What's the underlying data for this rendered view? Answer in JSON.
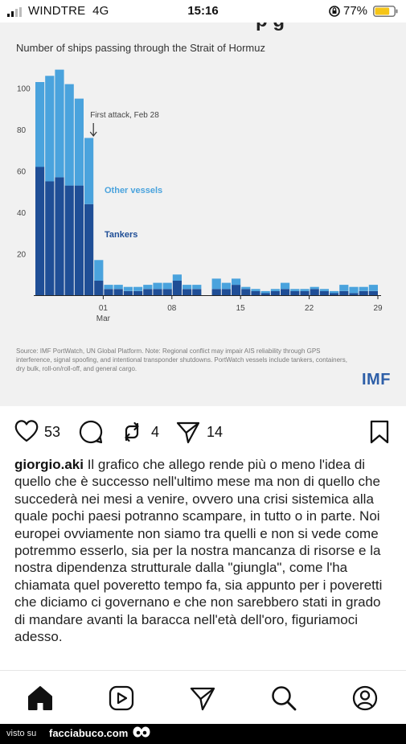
{
  "status_bar": {
    "carrier": "WINDTRE",
    "network": "4G",
    "time": "15:16",
    "battery_pct": "77%",
    "battery_level": 0.77,
    "battery_color": "#f5c518"
  },
  "post_image": {
    "cut_off_title": "p g",
    "chart_title": "Number of ships passing through the Strait of Hormuz",
    "source_note": "Source: IMF PortWatch, UN Global Platform. Note: Regional conflict may impair AIS reliability through GPS interference, signal spoofing, and intentional transponder shutdowns. PortWatch vessels include tankers, containers, dry bulk, roll-on/roll-off, and general cargo.",
    "logo": "IMF"
  },
  "chart_data": {
    "type": "bar",
    "stacked": true,
    "title": "Number of ships passing through the Strait of Hormuz",
    "annotation": "First attack, Feb 28",
    "annotation_index": 6,
    "series": [
      {
        "name": "Tankers",
        "color": "#1f4e96",
        "values": [
          62,
          55,
          57,
          53,
          53,
          44,
          7,
          3,
          3,
          2,
          2,
          3,
          3,
          3,
          7,
          3,
          3,
          3,
          3,
          5,
          3,
          2,
          1,
          2,
          3,
          2,
          2,
          3,
          2,
          1,
          2,
          1,
          2,
          2
        ]
      },
      {
        "name": "Other vessels",
        "color": "#4aa3dd",
        "values": [
          41,
          51,
          52,
          49,
          42,
          32,
          10,
          2,
          2,
          2,
          2,
          2,
          3,
          3,
          3,
          2,
          2,
          5,
          3,
          3,
          1,
          1,
          1,
          1,
          3,
          1,
          1,
          1,
          1,
          1,
          3,
          3,
          2,
          3
        ]
      }
    ],
    "gap_indices": [
      17
    ],
    "ylim": [
      0,
      110
    ],
    "yticks": [
      "20",
      "40",
      "60",
      "80",
      "100"
    ],
    "ytick_values": [
      20,
      40,
      60,
      80,
      100
    ],
    "xticks": [
      {
        "label": "01",
        "index": 7
      },
      {
        "label": "08",
        "index": 14
      },
      {
        "label": "15",
        "index": 21
      },
      {
        "label": "22",
        "index": 28
      },
      {
        "label": "29",
        "index": 35
      }
    ],
    "x_month_label": "Mar",
    "grid": false,
    "legend": "inline labels"
  },
  "actions": {
    "likes": "53",
    "reposts": "4",
    "shares": "14"
  },
  "caption": {
    "username": "giorgio.aki",
    "text": "Il grafico che allego rende più o meno l'idea di quello che è successo nell'ultimo mese ma non di quello che succederà nei mesi a venire, ovvero una crisi sistemica alla quale pochi paesi potranno scampare, in tutto o in parte. Noi europei ovviamente non siamo tra quelli e non si vede come potremmo esserlo, sia per la nostra mancanza di risorse e la nostra dipendenza strutturale dalla \"giungla\", come l'ha chiamata quel poveretto tempo fa, sia appunto per i poveretti che diciamo ci governano e che non sarebbero stati in grado di mandare avanti la baracca nell'età dell'oro, figuriamoci adesso."
  },
  "bottom_nav": {
    "items": [
      "home-icon",
      "reels-icon",
      "send-icon",
      "search-icon",
      "profile-icon"
    ]
  },
  "watermark": {
    "prefix": "visto su",
    "site": "facciabuco.com"
  }
}
